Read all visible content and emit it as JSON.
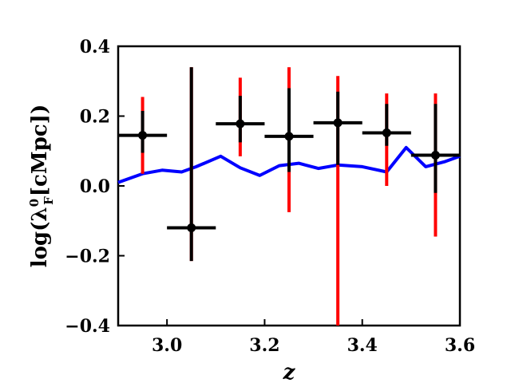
{
  "chart_data": {
    "type": "scatter",
    "xlabel": "z",
    "ylabel_parts": {
      "prefix": "log(λ",
      "sub": "F",
      "sup": "0",
      "suffix": "[cMpc])"
    },
    "xlim": [
      2.9,
      3.6
    ],
    "ylim": [
      -0.4,
      0.4
    ],
    "x_ticks": [
      3.0,
      3.2,
      3.4,
      3.6
    ],
    "x_tick_labels": [
      "3.0",
      "3.2",
      "3.4",
      "3.6"
    ],
    "y_ticks": [
      -0.4,
      -0.2,
      0.0,
      0.2,
      0.4
    ],
    "y_tick_labels": [
      "−0.4",
      "−0.2",
      "0.0",
      "0.2",
      "0.4"
    ],
    "grid": false,
    "points": [
      {
        "x": 2.95,
        "y": 0.145,
        "xerr": 0.05,
        "y_black": [
          0.095,
          0.215
        ],
        "y_red": [
          0.035,
          0.255
        ]
      },
      {
        "x": 3.05,
        "y": -0.12,
        "xerr": 0.05,
        "y_black": [
          -0.215,
          0.34
        ],
        "y_red": [
          -0.215,
          0.34
        ]
      },
      {
        "x": 3.15,
        "y": 0.178,
        "xerr": 0.05,
        "y_black": [
          0.125,
          0.258
        ],
        "y_red": [
          0.085,
          0.31
        ]
      },
      {
        "x": 3.25,
        "y": 0.142,
        "xerr": 0.05,
        "y_black": [
          0.04,
          0.28
        ],
        "y_red": [
          -0.075,
          0.34
        ]
      },
      {
        "x": 3.35,
        "y": 0.181,
        "xerr": 0.05,
        "y_black": [
          0.06,
          0.27
        ],
        "y_red": [
          -0.4,
          0.315
        ]
      },
      {
        "x": 3.45,
        "y": 0.152,
        "xerr": 0.05,
        "y_black": [
          0.115,
          0.235
        ],
        "y_red": [
          0.0,
          0.265
        ]
      },
      {
        "x": 3.55,
        "y": 0.088,
        "xerr": 0.05,
        "y_black": [
          -0.02,
          0.235
        ],
        "y_red": [
          -0.145,
          0.265
        ]
      }
    ],
    "line_series": {
      "color": "#0000ff",
      "x": [
        2.9,
        2.95,
        2.99,
        3.03,
        3.06,
        3.11,
        3.15,
        3.19,
        3.23,
        3.27,
        3.31,
        3.35,
        3.4,
        3.45,
        3.49,
        3.53,
        3.57,
        3.6
      ],
      "y": [
        0.01,
        0.035,
        0.045,
        0.04,
        0.055,
        0.085,
        0.052,
        0.03,
        0.058,
        0.065,
        0.05,
        0.06,
        0.055,
        0.04,
        0.11,
        0.055,
        0.07,
        0.085
      ]
    },
    "colors": {
      "points": "#000000",
      "outer_error": "#ff0000",
      "model_line": "#0000ff"
    }
  }
}
